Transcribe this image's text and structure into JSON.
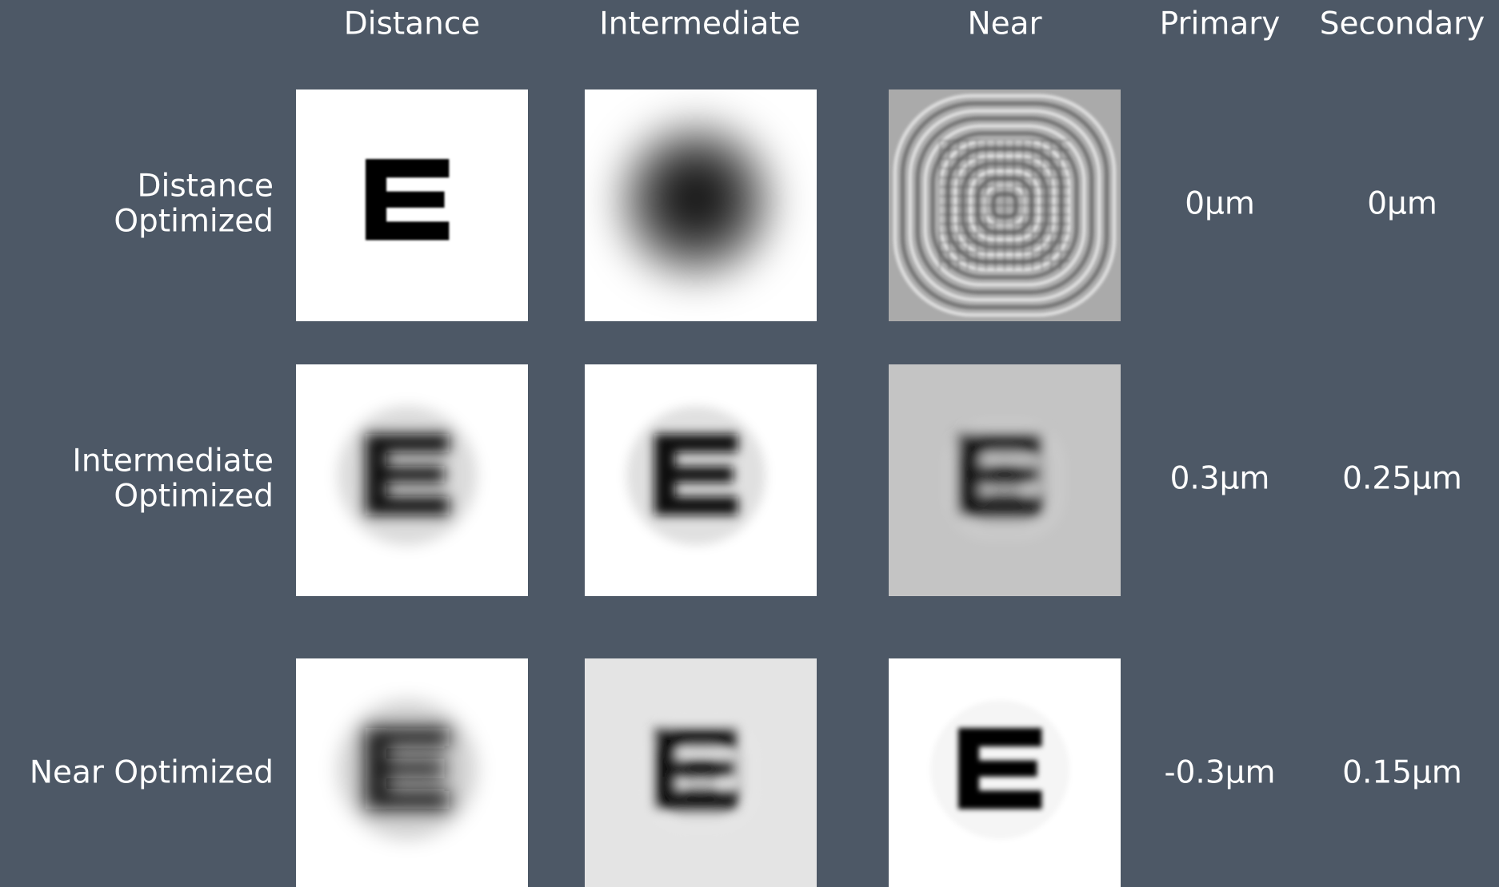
{
  "header": {
    "columns": [
      "Distance",
      "Intermediate",
      "Near",
      "Primary",
      "Secondary"
    ]
  },
  "rows": [
    {
      "label_lines": [
        "Distance",
        "Optimized"
      ],
      "primary": "0μm",
      "secondary": "0μm"
    },
    {
      "label_lines": [
        "Intermediate",
        "Optimized"
      ],
      "primary": "0.3μm",
      "secondary": "0.25μm"
    },
    {
      "label_lines": [
        "Near Optimized"
      ],
      "primary": "-0.3μm",
      "secondary": "0.15μm"
    }
  ]
}
